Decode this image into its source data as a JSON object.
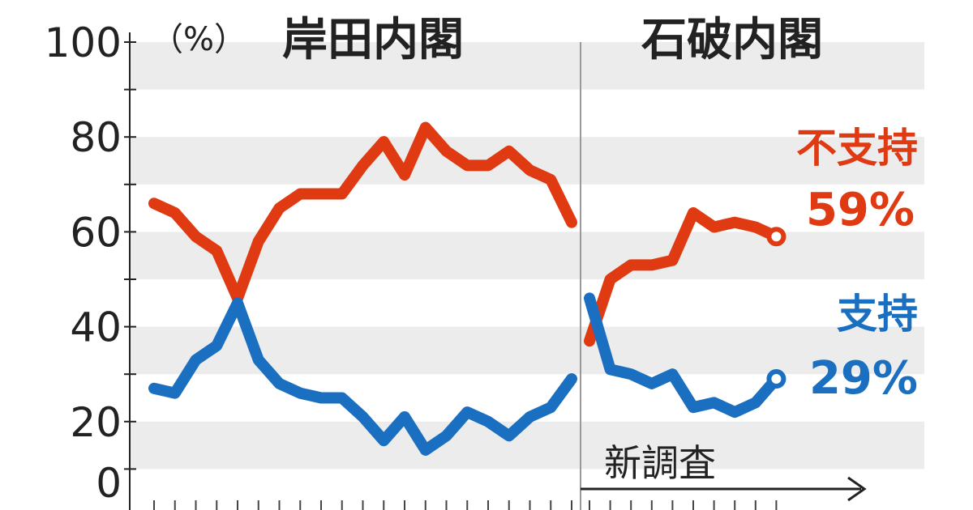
{
  "chart_data": {
    "type": "line",
    "unit_label": "（%）",
    "ylim": [
      0,
      100
    ],
    "yticks": [
      "0",
      "20",
      "40",
      "60",
      "80",
      "100"
    ],
    "grid": "alternating horizontal bands every 10",
    "panels": [
      {
        "title": "岸田内閣",
        "series": [
          {
            "name": "不支持",
            "color": "#e03a12",
            "values": [
              66,
              64,
              59,
              56,
              46,
              58,
              65,
              68,
              68,
              68,
              74,
              79,
              72,
              82,
              77,
              74,
              74,
              77,
              73,
              71,
              62
            ]
          },
          {
            "name": "支持",
            "color": "#1a6fc0",
            "values": [
              27,
              26,
              33,
              36,
              45,
              33,
              28,
              26,
              25,
              25,
              21,
              16,
              21,
              14,
              17,
              22,
              20,
              17,
              21,
              23,
              29
            ]
          }
        ]
      },
      {
        "title": "石破内閣",
        "series": [
          {
            "name": "不支持",
            "color": "#e03a12",
            "values": [
              37,
              50,
              53,
              53,
              54,
              64,
              61,
              62,
              61,
              59
            ]
          },
          {
            "name": "支持",
            "color": "#1a6fc0",
            "values": [
              46,
              31,
              30,
              28,
              30,
              23,
              24,
              22,
              24,
              29
            ]
          }
        ]
      }
    ],
    "annotations": {
      "disapprove_label": "不支持",
      "disapprove_value": "59%",
      "approve_label": "支持",
      "approve_value": "29%",
      "new_survey": "新調査"
    }
  }
}
